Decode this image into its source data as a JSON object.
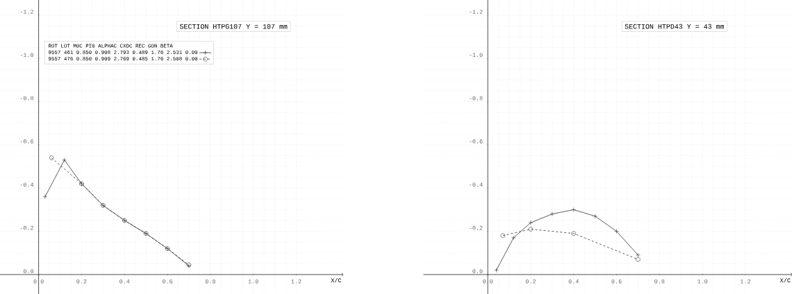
{
  "chart_data": [
    {
      "type": "line",
      "title": "SECTION HTPG107 Y = 107 mm",
      "xlabel": "X/C",
      "legend_title": "ROT LOT M0C PI0 ALPHAC CXDC REC GON BETA",
      "legend": "top",
      "grid": true,
      "xlim": [
        -0.18,
        1.42
      ],
      "ylim": [
        0.09,
        -1.27
      ],
      "xticks": [
        {
          "value": 0,
          "label": "0.0"
        },
        {
          "value": 0.2,
          "label": "0.2"
        },
        {
          "value": 0.4,
          "label": "0.4"
        },
        {
          "value": 0.6,
          "label": "0.6"
        },
        {
          "value": 0.8,
          "label": "0.8"
        },
        {
          "value": 1.0,
          "label": "1.0"
        },
        {
          "value": 1.2,
          "label": "1.2"
        }
      ],
      "yticks": [
        {
          "value": 0,
          "label": "0.0"
        },
        {
          "value": -0.2,
          "label": "-0.2"
        },
        {
          "value": -0.4,
          "label": "-0.4"
        },
        {
          "value": -0.6,
          "label": "-0.6"
        },
        {
          "value": -0.8,
          "label": "-0.8"
        },
        {
          "value": -1.0,
          "label": "-1.0"
        },
        {
          "value": -1.2,
          "label": "-1.2"
        }
      ],
      "series": [
        {
          "name": "9557 461 0.850 0.908 2.793 0.489 1.76 2.531 0.00",
          "color": "#333333",
          "marker": "cross",
          "line_style": "solid",
          "x": [
            0.03,
            0.12,
            0.2,
            0.3,
            0.4,
            0.5,
            0.6,
            0.7
          ],
          "values": [
            -0.36,
            -0.53,
            -0.42,
            -0.32,
            -0.25,
            -0.19,
            -0.12,
            -0.04
          ]
        },
        {
          "name": "9557 476 0.850 0.909 2.769 0.485 1.76 2.508 0.00",
          "color": "#333333",
          "marker": "circle",
          "line_style": "dashed",
          "x": [
            0.06,
            0.2,
            0.3,
            0.4,
            0.5,
            0.6,
            0.7
          ],
          "values": [
            -0.54,
            -0.42,
            -0.32,
            -0.25,
            -0.19,
            -0.12,
            -0.045
          ]
        }
      ]
    },
    {
      "type": "line",
      "title": "SECTION HTPD43 Y = 43 mm",
      "xlabel": "X/C",
      "grid": true,
      "xlim": [
        -0.3,
        1.42
      ],
      "ylim": [
        0.09,
        -1.27
      ],
      "xticks": [
        {
          "value": 0,
          "label": "0.0"
        },
        {
          "value": 0.2,
          "label": "0.2"
        },
        {
          "value": 0.4,
          "label": "0.4"
        },
        {
          "value": 0.6,
          "label": "0.6"
        },
        {
          "value": 0.8,
          "label": "0.8"
        },
        {
          "value": 1.0,
          "label": "1.0"
        },
        {
          "value": 1.2,
          "label": "1.2"
        }
      ],
      "yticks": [
        {
          "value": 0,
          "label": "0.0"
        },
        {
          "value": -0.2,
          "label": "-0.2"
        },
        {
          "value": -0.4,
          "label": "-0.4"
        },
        {
          "value": -0.6,
          "label": "-0.6"
        },
        {
          "value": -0.8,
          "label": "-0.8"
        },
        {
          "value": -1.0,
          "label": "-1.0"
        },
        {
          "value": -1.2,
          "label": "-1.2"
        }
      ],
      "series": [
        {
          "color": "#333333",
          "marker": "cross",
          "line_style": "solid",
          "x": [
            0.04,
            0.12,
            0.2,
            0.3,
            0.4,
            0.5,
            0.6,
            0.7
          ],
          "values": [
            -0.02,
            -0.17,
            -0.24,
            -0.28,
            -0.3,
            -0.27,
            -0.2,
            -0.09
          ]
        },
        {
          "color": "#333333",
          "marker": "circle",
          "line_style": "dashed",
          "x": [
            0.07,
            0.2,
            0.4,
            0.7
          ],
          "values": [
            -0.18,
            -0.21,
            -0.19,
            -0.07
          ]
        }
      ]
    }
  ]
}
